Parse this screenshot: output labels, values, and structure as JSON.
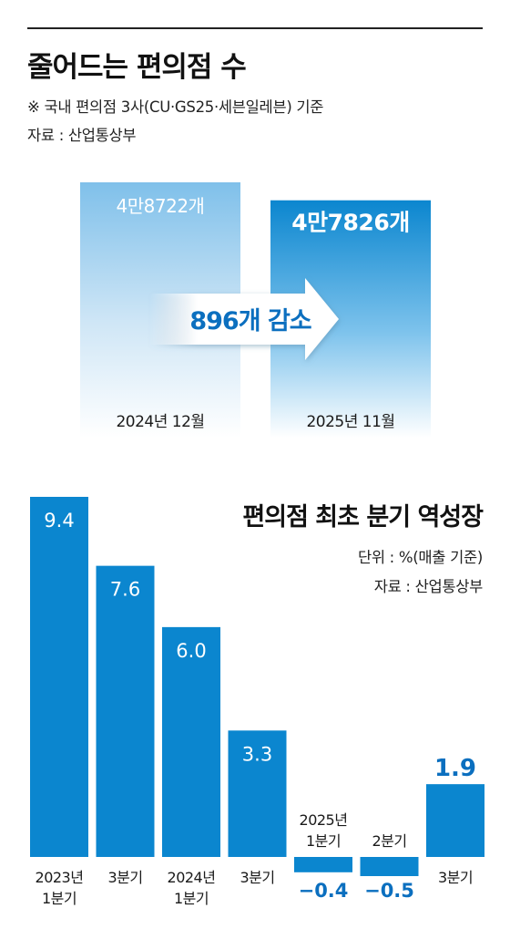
{
  "header": {
    "title": "줄어드는 편의점 수",
    "note": "※ 국내 편의점 3사(CU·GS25·세븐일레븐) 기준",
    "source": "자료 : 산업통상부"
  },
  "colors": {
    "bar_blue": "#0b86cf",
    "bar_light": "#7fc0ea",
    "label_blue": "#0b6fbf",
    "text_dark": "#111111"
  },
  "chart_data": [
    {
      "type": "bar",
      "title": "줄어드는 편의점 수",
      "categories": [
        "2024년 12월",
        "2025년 11월"
      ],
      "values": [
        48722,
        47826
      ],
      "value_labels": [
        "4만8722개",
        "4만7826개"
      ],
      "annotation": "896개 감소",
      "ylim": [
        0,
        48722
      ]
    },
    {
      "type": "bar",
      "title": "편의점 최초 분기 역성장",
      "unit": "단위 : %(매출 기준)",
      "source": "자료 : 산업통상부",
      "categories": [
        "2023년 1분기",
        "3분기",
        "2024년 1분기",
        "3분기",
        "2025년 1분기",
        "2분기",
        "3분기"
      ],
      "values": [
        9.4,
        7.6,
        6.0,
        3.3,
        -0.4,
        -0.5,
        1.9
      ],
      "value_labels": [
        "9.4",
        "7.6",
        "6.0",
        "3.3",
        "−0.4",
        "−0.5",
        "1.9"
      ],
      "ylim": [
        -0.5,
        9.4
      ],
      "grid": false
    }
  ]
}
